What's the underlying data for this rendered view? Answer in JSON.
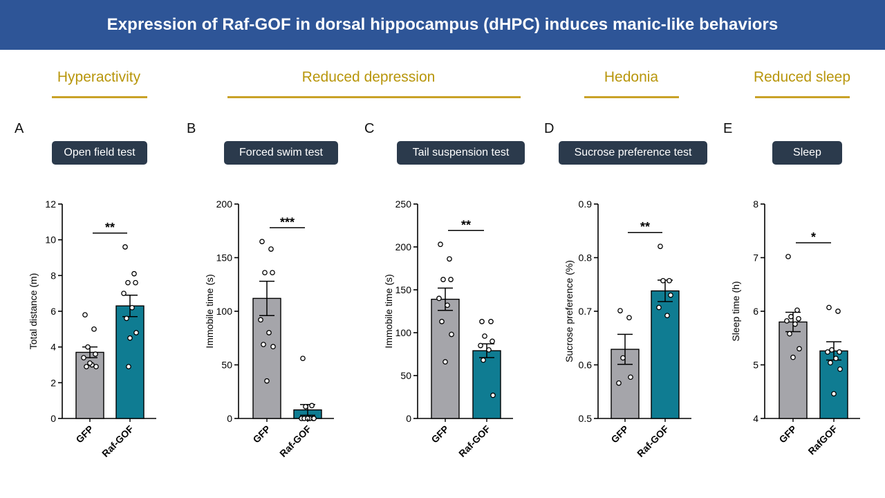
{
  "header": {
    "title": "Expression of Raf-GOF in dorsal hippocampus (dHPC) induces manic-like behaviors"
  },
  "categories": [
    {
      "label": "Hyperactivity"
    },
    {
      "label": "Reduced depression"
    },
    {
      "label": "Hedonia"
    },
    {
      "label": "Reduced sleep"
    }
  ],
  "panels": [
    {
      "letter": "A",
      "test": "Open field test"
    },
    {
      "letter": "B",
      "test": "Forced swim test"
    },
    {
      "letter": "C",
      "test": "Tail suspension test"
    },
    {
      "letter": "D",
      "test": "Sucrose preference test"
    },
    {
      "letter": "E",
      "test": "Sleep"
    }
  ],
  "colors": {
    "header_bg": "#2e5597",
    "category": "#b8960c",
    "control_bar": "#a5a5aa",
    "treated_bar": "#0f7c92",
    "badge_bg": "#2b3a4c"
  },
  "chart_data": [
    {
      "type": "bar",
      "title": "Open field test",
      "ylabel": "Total distance (m)",
      "categories": [
        "GFP",
        "Raf-GOF"
      ],
      "ylim": [
        0,
        12
      ],
      "yticks": [
        0,
        2,
        4,
        6,
        8,
        10,
        12
      ],
      "values": [
        3.7,
        6.3
      ],
      "errors": [
        0.3,
        0.6
      ],
      "points": [
        [
          5.8,
          5.0,
          4.0,
          3.6,
          3.4,
          3.0,
          2.9,
          2.9,
          3.1
        ],
        [
          9.6,
          8.1,
          7.6,
          7.6,
          7.0,
          6.2,
          5.6,
          4.8,
          4.5,
          2.9
        ]
      ],
      "significance": "**"
    },
    {
      "type": "bar",
      "title": "Forced swim test",
      "ylabel": "Immobile time (s)",
      "categories": [
        "GFP",
        "Raf-GOF"
      ],
      "ylim": [
        0,
        200
      ],
      "yticks": [
        0,
        50,
        100,
        150,
        200
      ],
      "values": [
        112,
        8
      ],
      "errors": [
        16,
        5
      ],
      "points": [
        [
          165,
          158,
          136,
          136,
          92,
          80,
          69,
          67,
          35
        ],
        [
          56,
          12,
          11,
          0,
          0,
          0,
          0,
          0,
          0
        ]
      ],
      "significance": "***"
    },
    {
      "type": "bar",
      "title": "Tail suspension test",
      "ylabel": "Immobile time (s)",
      "categories": [
        "GFP",
        "Raf-GOF"
      ],
      "ylim": [
        0,
        250
      ],
      "yticks": [
        0,
        50,
        100,
        150,
        200,
        250
      ],
      "values": [
        139,
        79
      ],
      "errors": [
        13,
        8
      ],
      "points": [
        [
          203,
          186,
          162,
          162,
          140,
          132,
          113,
          98,
          66
        ],
        [
          113,
          113,
          96,
          90,
          85,
          80,
          68,
          27
        ]
      ],
      "significance": "**"
    },
    {
      "type": "bar",
      "title": "Sucrose preference test",
      "ylabel": "Sucrose preference (%)",
      "categories": [
        "GFP",
        "Raf-GOF"
      ],
      "ylim": [
        0.5,
        0.9
      ],
      "yticks": [
        0.5,
        0.6,
        0.7,
        0.8,
        0.9
      ],
      "values": [
        0.629,
        0.738
      ],
      "errors": [
        0.028,
        0.02
      ],
      "points": [
        [
          0.701,
          0.688,
          0.613,
          0.577,
          0.566
        ],
        [
          0.821,
          0.757,
          0.757,
          0.73,
          0.707,
          0.692
        ]
      ],
      "significance": "**"
    },
    {
      "type": "bar",
      "title": "Sleep",
      "ylabel": "Sleep time (h)",
      "categories": [
        "GFP",
        "RafGOF"
      ],
      "ylim": [
        4,
        8
      ],
      "yticks": [
        4,
        5,
        6,
        7,
        8
      ],
      "values": [
        5.8,
        5.26
      ],
      "errors": [
        0.18,
        0.17
      ],
      "points": [
        [
          7.02,
          6.02,
          5.9,
          5.86,
          5.82,
          5.76,
          5.58,
          5.3,
          5.14
        ],
        [
          6.07,
          6.0,
          5.28,
          5.24,
          5.24,
          5.12,
          5.04,
          4.92,
          4.46
        ]
      ],
      "significance": "*"
    }
  ]
}
